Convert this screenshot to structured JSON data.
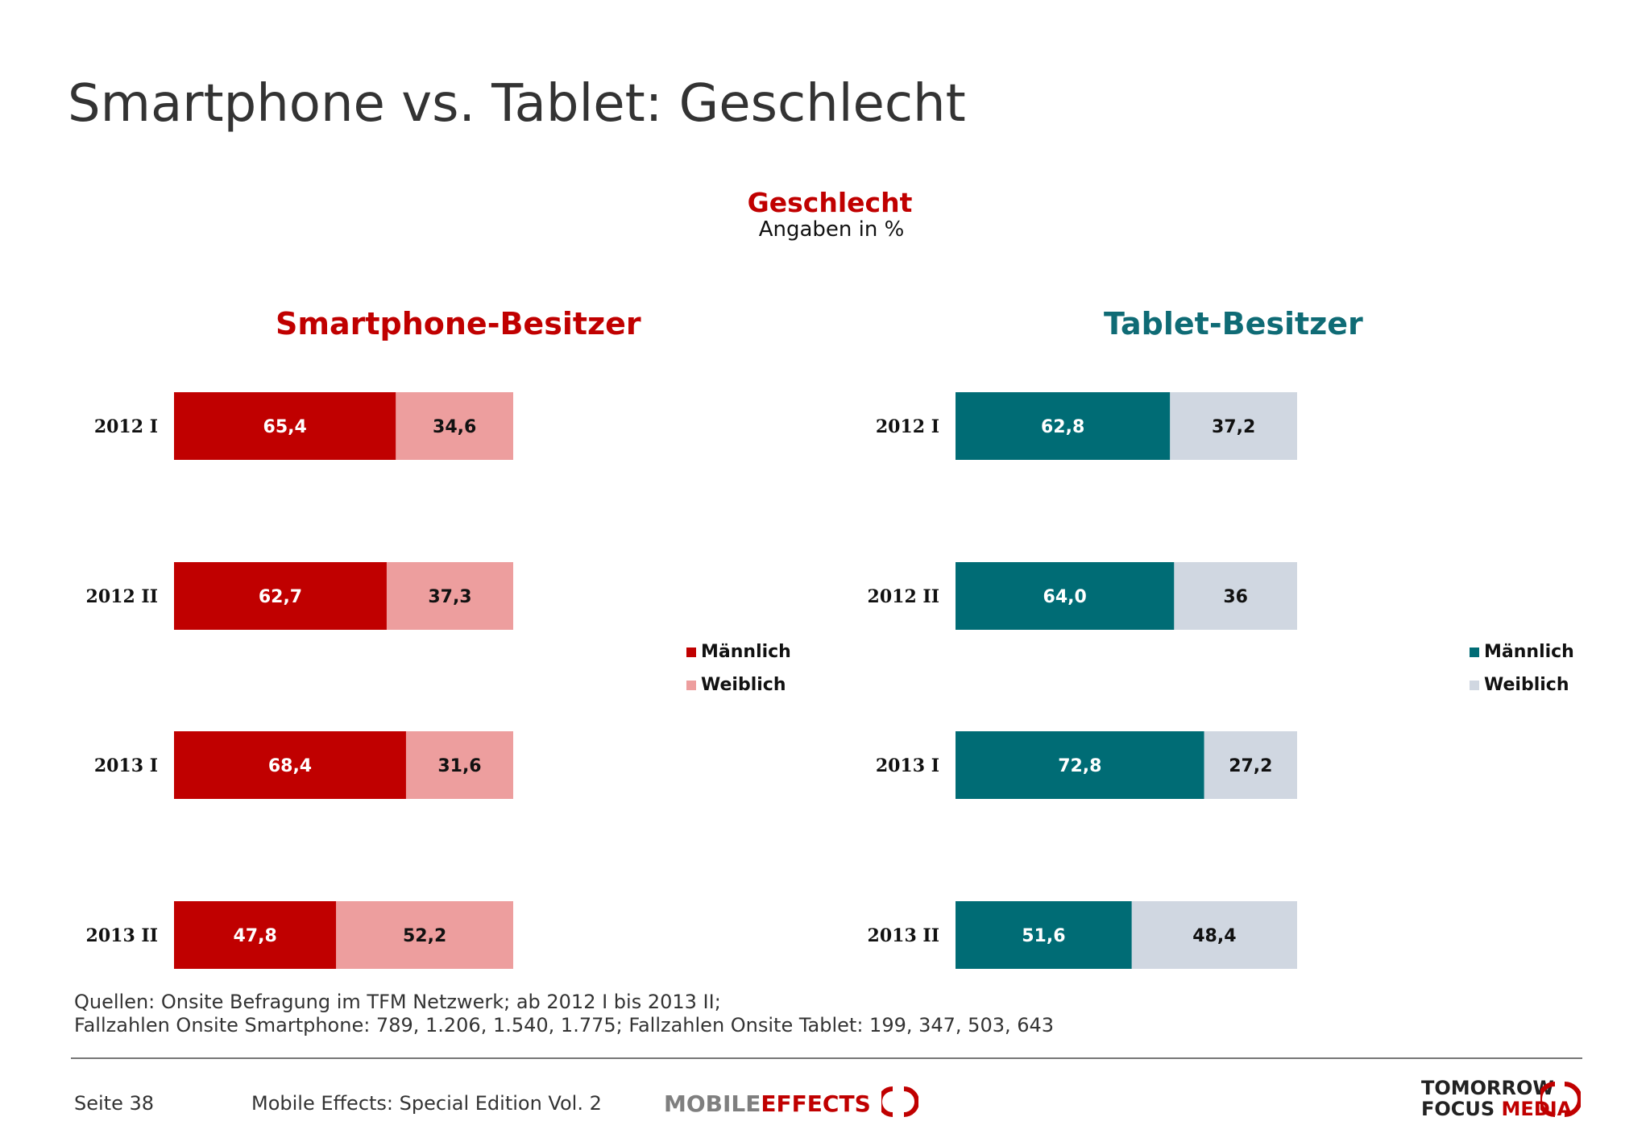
{
  "page": {
    "title": "Smartphone vs. Tablet: Geschlecht",
    "heading": "Geschlecht",
    "subheading": "Angaben in %"
  },
  "colors": {
    "smartphone_male": "#c00000",
    "smartphone_female": "#ed9e9e",
    "tablet_male": "#006c75",
    "tablet_female": "#d0d7e1",
    "title_red": "#c00000",
    "title_teal": "#0f6b75"
  },
  "chart_data": [
    {
      "type": "bar",
      "orientation": "horizontal",
      "stacked": true,
      "title": "Smartphone-Besitzer",
      "categories": [
        "2012 I",
        "2012 II",
        "2013 I",
        "2013 II"
      ],
      "series": [
        {
          "name": "Männlich",
          "values": [
            65.4,
            62.7,
            68.4,
            47.8
          ],
          "labels": [
            "65,4",
            "62,7",
            "68,4",
            "47,8"
          ],
          "color": "#c00000"
        },
        {
          "name": "Weiblich",
          "values": [
            34.6,
            37.3,
            31.6,
            52.2
          ],
          "labels": [
            "34,6",
            "37,3",
            "31,6",
            "52,2"
          ],
          "color": "#ed9e9e"
        }
      ],
      "xlim": [
        0,
        100
      ],
      "grid": false,
      "legend": "right"
    },
    {
      "type": "bar",
      "orientation": "horizontal",
      "stacked": true,
      "title": "Tablet-Besitzer",
      "categories": [
        "2012 I",
        "2012 II",
        "2013 I",
        "2013 II"
      ],
      "series": [
        {
          "name": "Männlich",
          "values": [
            62.8,
            64.0,
            72.8,
            51.6
          ],
          "labels": [
            "62,8",
            "64,0",
            "72,8",
            "51,6"
          ],
          "color": "#006c75"
        },
        {
          "name": "Weiblich",
          "values": [
            37.2,
            36,
            27.2,
            48.4
          ],
          "labels": [
            "37,2",
            "36",
            "27,2",
            "48,4"
          ],
          "color": "#d0d7e1"
        }
      ],
      "xlim": [
        0,
        100
      ],
      "grid": false,
      "legend": "right"
    }
  ],
  "footer": {
    "source_line_1": "Quellen: Onsite Befragung im TFM Netzwerk; ab 2012 I bis 2013 II;",
    "source_line_2": "Fallzahlen Onsite Smartphone: 789, 1.206, 1.540, 1.775; Fallzahlen Onsite Tablet: 199, 347, 503, 643",
    "page_number": "Seite 38",
    "publication": "Mobile Effects: Special Edition Vol. 2",
    "logo_mobile_effects": {
      "part1": "MOBILE",
      "part2": "EFFECTS"
    },
    "logo_tomorrow_focus": {
      "line1": "TOMORROW",
      "line2a": "FOCUS",
      "line2b": "MEDIA"
    }
  }
}
